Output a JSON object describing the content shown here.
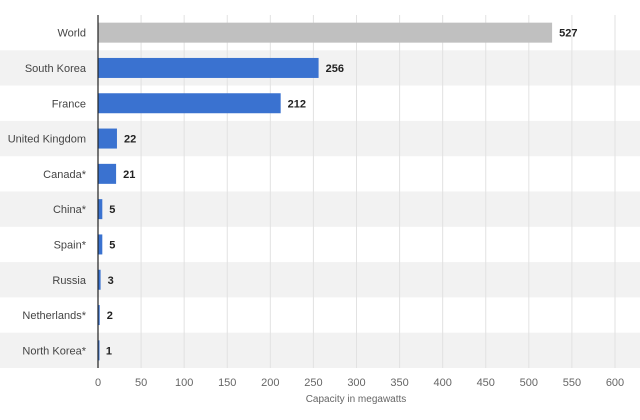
{
  "chart_data": {
    "type": "bar",
    "orientation": "horizontal",
    "categories": [
      "World",
      "South Korea",
      "France",
      "United Kingdom",
      "Canada*",
      "China*",
      "Spain*",
      "Russia",
      "Netherlands*",
      "North Korea*"
    ],
    "values": [
      527,
      256,
      212,
      22,
      21,
      5,
      5,
      3,
      2,
      1
    ],
    "colors": [
      "#c0c0c0",
      "#3a72d0",
      "#3a72d0",
      "#3a72d0",
      "#3a72d0",
      "#3a72d0",
      "#3a72d0",
      "#3a72d0",
      "#3a72d0",
      "#3a72d0"
    ],
    "title": "",
    "xlabel": "Capacity in megawatts",
    "ylabel": "",
    "xlim": [
      0,
      600
    ],
    "xticks": [
      0,
      50,
      100,
      150,
      200,
      250,
      300,
      350,
      400,
      450,
      500,
      550,
      600
    ],
    "grid": true,
    "legend": "none",
    "data_labels": true
  },
  "colors": {
    "band": "#f2f2f2",
    "grid": "#e2e2e2",
    "axis": "#222222"
  }
}
